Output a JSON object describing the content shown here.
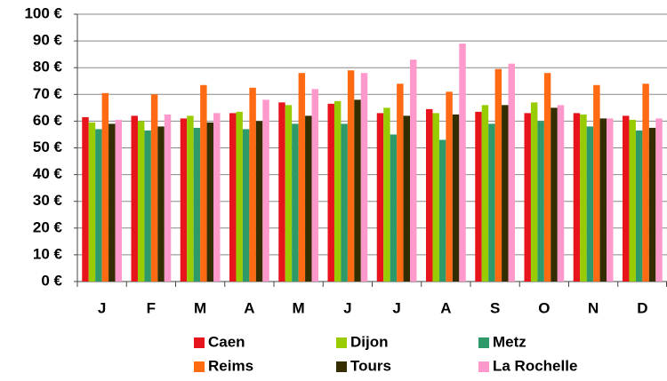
{
  "chart_data": {
    "type": "bar",
    "categories": [
      "J",
      "F",
      "M",
      "A",
      "M",
      "J",
      "J",
      "A",
      "S",
      "O",
      "N",
      "D"
    ],
    "series": [
      {
        "name": "Caen",
        "color": "#e8141c",
        "values": [
          61.5,
          62,
          61,
          63,
          67,
          66.5,
          63,
          64.5,
          63.5,
          63,
          63,
          62
        ]
      },
      {
        "name": "Dijon",
        "color": "#99cc00",
        "values": [
          59.5,
          60,
          62,
          63.5,
          66,
          67.5,
          65,
          63,
          66,
          67,
          62.5,
          60.5
        ]
      },
      {
        "name": "Metz",
        "color": "#2e9a6a",
        "values": [
          57,
          56.5,
          57.5,
          57,
          59,
          59,
          55,
          53,
          59,
          60,
          58,
          56.5
        ]
      },
      {
        "name": "Reims",
        "color": "#ff6a13",
        "values": [
          70.5,
          70,
          73.5,
          72.5,
          78,
          79,
          74,
          71,
          79.5,
          78,
          73.5,
          74
        ]
      },
      {
        "name": "Tours",
        "color": "#332d00",
        "values": [
          59,
          58,
          59.5,
          60,
          62,
          68,
          62,
          62.5,
          66,
          65,
          61,
          57.5
        ]
      },
      {
        "name": "La Rochelle",
        "color": "#ff99cc",
        "values": [
          60.5,
          62.5,
          63,
          68,
          72,
          78,
          83,
          89,
          81.5,
          66,
          61,
          61
        ]
      }
    ],
    "ylim": [
      0,
      100
    ],
    "yticks": [
      {
        "value": 0,
        "label": "0 €"
      },
      {
        "value": 10,
        "label": "10 €"
      },
      {
        "value": 20,
        "label": "20 €"
      },
      {
        "value": 30,
        "label": "30 €"
      },
      {
        "value": 40,
        "label": "40 €"
      },
      {
        "value": 50,
        "label": "50 €"
      },
      {
        "value": 60,
        "label": "60 €"
      },
      {
        "value": 70,
        "label": "70 €"
      },
      {
        "value": 80,
        "label": "80 €"
      },
      {
        "value": 90,
        "label": "90 €"
      },
      {
        "value": 100,
        "label": "100 €"
      }
    ],
    "grid": true
  }
}
